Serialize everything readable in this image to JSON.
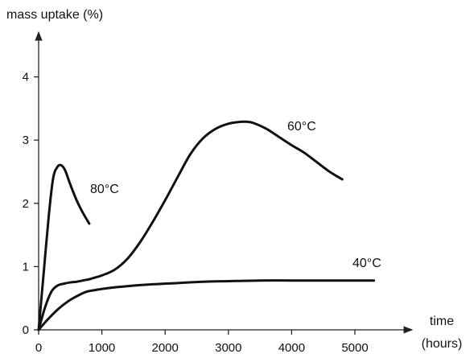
{
  "chart_data": {
    "type": "line",
    "title": "",
    "ylabel": "mass uptake (%)",
    "xlabel": [
      "time",
      "(hours)"
    ],
    "xlim": [
      0,
      6000
    ],
    "ylim": [
      0,
      4.5
    ],
    "xticks": [
      0,
      1000,
      2000,
      3000,
      4000,
      5000
    ],
    "yticks": [
      0,
      1,
      2,
      3,
      4
    ],
    "grid": false,
    "series": [
      {
        "name": "80°C",
        "x": [
          0,
          80,
          160,
          230,
          300,
          360,
          420,
          500,
          600,
          700,
          800
        ],
        "y": [
          0,
          0.9,
          1.8,
          2.4,
          2.58,
          2.6,
          2.52,
          2.3,
          2.05,
          1.85,
          1.68
        ]
      },
      {
        "name": "60°C",
        "x": [
          0,
          100,
          200,
          300,
          400,
          500,
          600,
          700,
          800,
          900,
          1000,
          1200,
          1400,
          1600,
          1800,
          2000,
          2200,
          2400,
          2600,
          2800,
          3000,
          3200,
          3300,
          3400,
          3600,
          3800,
          4000,
          4200,
          4400,
          4600,
          4800
        ],
        "y": [
          0,
          0.35,
          0.6,
          0.7,
          0.73,
          0.75,
          0.76,
          0.78,
          0.8,
          0.83,
          0.86,
          0.95,
          1.12,
          1.38,
          1.7,
          2.05,
          2.42,
          2.78,
          3.03,
          3.18,
          3.26,
          3.29,
          3.29,
          3.27,
          3.18,
          3.05,
          2.92,
          2.8,
          2.65,
          2.5,
          2.38
        ]
      },
      {
        "name": "40°C",
        "x": [
          0,
          150,
          300,
          450,
          600,
          750,
          900,
          1100,
          1400,
          1800,
          2200,
          2600,
          3000,
          3500,
          4000,
          4500,
          5000,
          5300
        ],
        "y": [
          0,
          0.17,
          0.32,
          0.44,
          0.53,
          0.6,
          0.63,
          0.66,
          0.69,
          0.72,
          0.74,
          0.76,
          0.77,
          0.78,
          0.78,
          0.78,
          0.78,
          0.78
        ]
      }
    ]
  }
}
